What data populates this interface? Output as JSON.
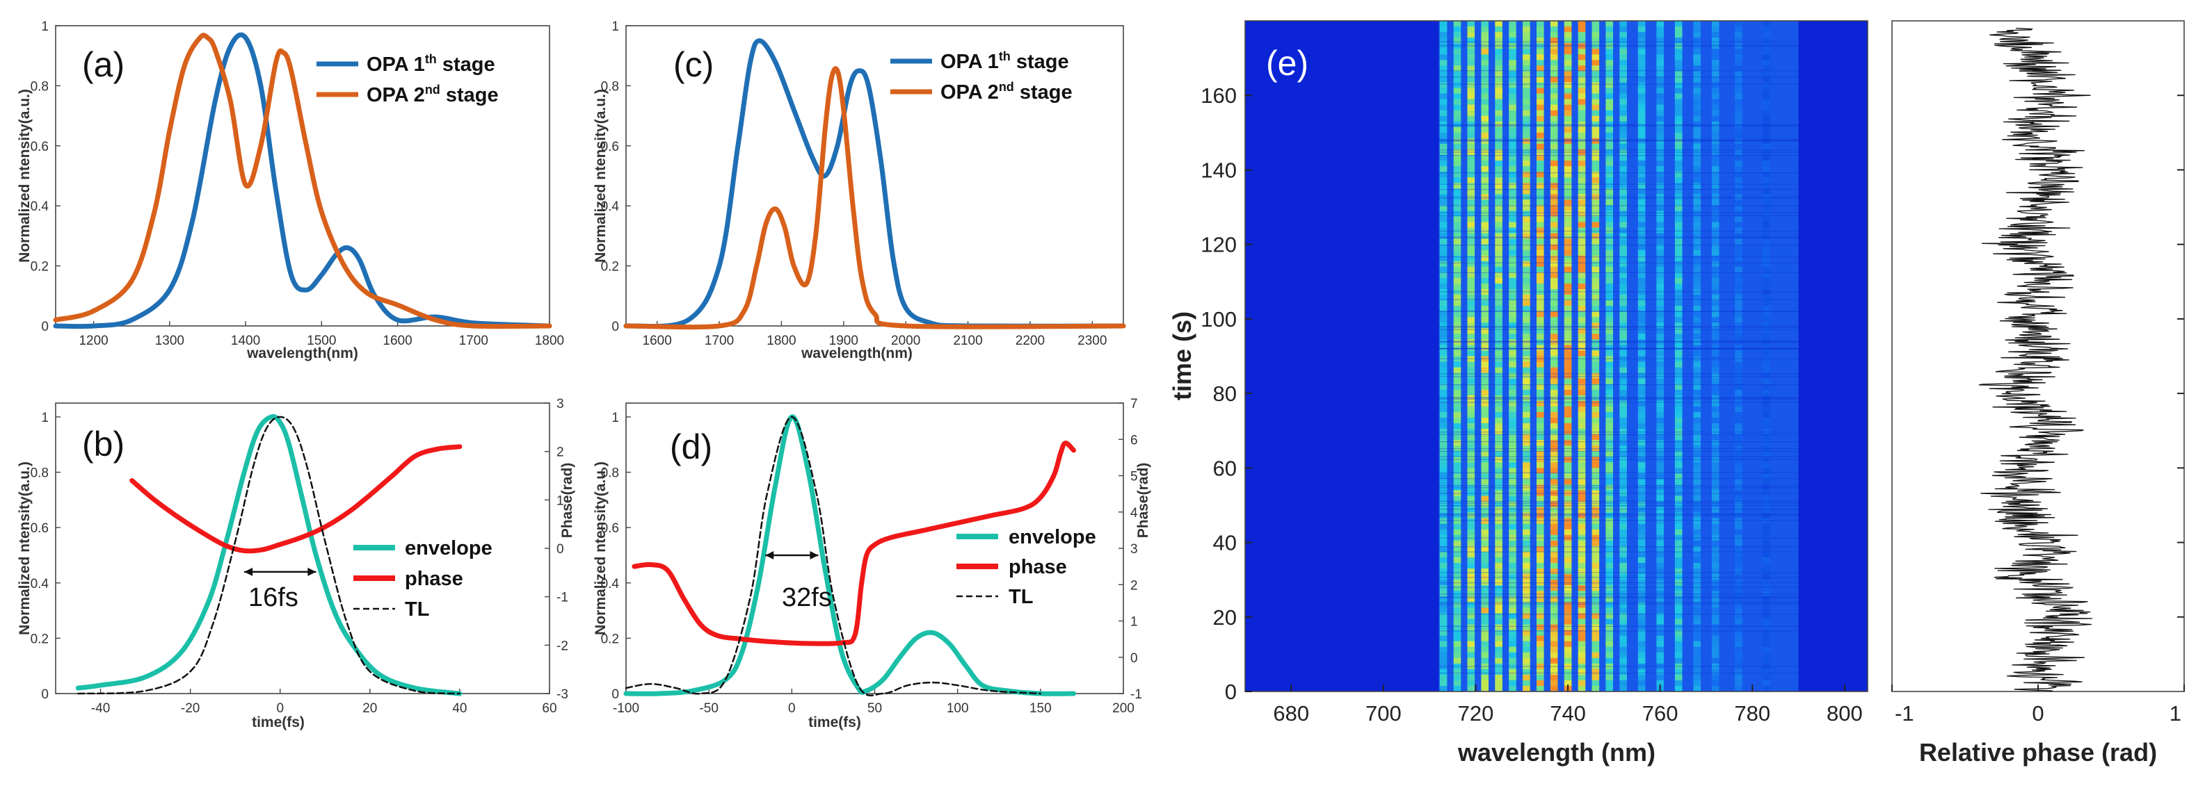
{
  "colors": {
    "blue": "#1f6fb5",
    "orange": "#d8601a",
    "teal": "#1bbfa8",
    "red": "#f01818",
    "tl": "#111111",
    "heat_bg": "#0a24d6"
  },
  "chart_data": [
    {
      "id": "a",
      "type": "line",
      "panel_label": "(a)",
      "title": "",
      "xlabel": "wavelength(nm)",
      "ylabel": "Normalized ntensity(a.u.)",
      "xlim": [
        1150,
        1800
      ],
      "ylim": [
        0,
        1
      ],
      "xticks": [
        1200,
        1300,
        1400,
        1500,
        1600,
        1700,
        1800
      ],
      "yticks": [
        0,
        0.2,
        0.4,
        0.6,
        0.8,
        1
      ],
      "ytick_labels": [
        "0",
        "0.2",
        "0.4",
        "0.6",
        "0.8",
        "1"
      ],
      "legend": [
        {
          "pre": "OPA 1",
          "sup": "th",
          "post": " stage",
          "color": "blue"
        },
        {
          "pre": "OPA 2",
          "sup": "nd",
          "post": " stage",
          "color": "orange"
        }
      ],
      "series": [
        {
          "name": "OPA 1th stage",
          "color": "blue",
          "x": [
            1150,
            1200,
            1250,
            1300,
            1330,
            1360,
            1380,
            1400,
            1420,
            1440,
            1460,
            1480,
            1500,
            1520,
            1535,
            1550,
            1570,
            1600,
            1650,
            1700,
            1800
          ],
          "y": [
            0.0,
            0.0,
            0.02,
            0.12,
            0.35,
            0.75,
            0.93,
            0.96,
            0.8,
            0.45,
            0.17,
            0.12,
            0.17,
            0.24,
            0.26,
            0.22,
            0.1,
            0.02,
            0.03,
            0.01,
            0.0
          ]
        },
        {
          "name": "OPA 2nd stage",
          "color": "orange",
          "x": [
            1150,
            1200,
            1250,
            1280,
            1300,
            1320,
            1340,
            1350,
            1360,
            1380,
            1400,
            1420,
            1440,
            1450,
            1460,
            1480,
            1500,
            1530,
            1560,
            1600,
            1650,
            1700,
            1800
          ],
          "y": [
            0.02,
            0.05,
            0.15,
            0.38,
            0.65,
            0.87,
            0.96,
            0.96,
            0.92,
            0.75,
            0.47,
            0.6,
            0.88,
            0.91,
            0.85,
            0.6,
            0.38,
            0.2,
            0.11,
            0.07,
            0.02,
            0.0,
            0.0
          ]
        }
      ]
    },
    {
      "id": "b",
      "type": "line",
      "panel_label": "(b)",
      "xlabel": "time(fs)",
      "ylabel": "Normalized ntensity(a.u.)",
      "y2label": "Phase(rad)",
      "xlim": [
        -50,
        60
      ],
      "ylim": [
        0,
        1.05
      ],
      "y2lim": [
        -3,
        3
      ],
      "xticks": [
        -40,
        -20,
        0,
        20,
        40,
        60
      ],
      "yticks": [
        0,
        0.2,
        0.4,
        0.6,
        0.8,
        1
      ],
      "ytick_labels": [
        "0",
        "0.2",
        "0.4",
        "0.6",
        "0.8",
        "1"
      ],
      "y2ticks": [
        -3,
        -2,
        -1,
        0,
        1,
        2,
        3
      ],
      "fwhm_label": "16fs",
      "fwhm_range": [
        -8,
        8
      ],
      "fwhm_level": 0.44,
      "legend": [
        {
          "label": "envelope",
          "color": "teal",
          "style": "solid"
        },
        {
          "label": "phase",
          "color": "red",
          "style": "solid"
        },
        {
          "label": "TL",
          "color": "tl",
          "style": "dashed"
        }
      ],
      "series": [
        {
          "name": "envelope",
          "color": "teal",
          "axis": "y",
          "x": [
            -45,
            -40,
            -30,
            -22,
            -16,
            -12,
            -8,
            -5,
            -2,
            0,
            2,
            5,
            8,
            12,
            16,
            22,
            30,
            40
          ],
          "y": [
            0.02,
            0.03,
            0.06,
            0.15,
            0.33,
            0.55,
            0.8,
            0.95,
            1.0,
            0.98,
            0.9,
            0.7,
            0.5,
            0.3,
            0.18,
            0.07,
            0.02,
            0.0
          ]
        },
        {
          "name": "phase",
          "color": "red",
          "axis": "y2",
          "x": [
            -33,
            -28,
            -22,
            -16,
            -12,
            -8,
            -4,
            0,
            4,
            8,
            12,
            16,
            20,
            25,
            30,
            35,
            40
          ],
          "y": [
            1.4,
            1.0,
            0.6,
            0.25,
            0.05,
            -0.05,
            -0.03,
            0.08,
            0.2,
            0.35,
            0.55,
            0.8,
            1.1,
            1.5,
            1.9,
            2.05,
            2.1
          ]
        },
        {
          "name": "TL",
          "color": "tl",
          "axis": "y",
          "dashed": true,
          "x": [
            -45,
            -30,
            -20,
            -15,
            -10,
            -6,
            -3,
            0,
            3,
            6,
            10,
            15,
            20,
            30,
            40
          ],
          "y": [
            0.0,
            0.01,
            0.08,
            0.25,
            0.55,
            0.82,
            0.96,
            1.0,
            0.96,
            0.82,
            0.55,
            0.25,
            0.08,
            0.01,
            0.0
          ]
        }
      ]
    },
    {
      "id": "c",
      "type": "line",
      "panel_label": "(c)",
      "xlabel": "wavelength(nm)",
      "ylabel": "Normalized ntensity(a.u.)",
      "xlim": [
        1550,
        2350
      ],
      "ylim": [
        0,
        1
      ],
      "xticks": [
        1600,
        1700,
        1800,
        1900,
        2000,
        2100,
        2200,
        2300
      ],
      "yticks": [
        0,
        0.2,
        0.4,
        0.6,
        0.8,
        1
      ],
      "ytick_labels": [
        "0",
        "0.2",
        "0.4",
        "0.6",
        "0.8",
        "1"
      ],
      "legend": [
        {
          "pre": "OPA 1",
          "sup": "th",
          "post": " stage",
          "color": "blue"
        },
        {
          "pre": "OPA 2",
          "sup": "nd",
          "post": " stage",
          "color": "orange"
        }
      ],
      "series": [
        {
          "name": "OPA 1th stage",
          "color": "blue",
          "x": [
            1550,
            1650,
            1700,
            1730,
            1750,
            1765,
            1790,
            1820,
            1850,
            1870,
            1890,
            1910,
            1925,
            1940,
            1960,
            1980,
            2000,
            2040,
            2100,
            2350
          ],
          "y": [
            0.0,
            0.02,
            0.2,
            0.6,
            0.88,
            0.95,
            0.88,
            0.72,
            0.56,
            0.5,
            0.6,
            0.8,
            0.85,
            0.8,
            0.55,
            0.22,
            0.06,
            0.01,
            0.0,
            0.0
          ]
        },
        {
          "name": "OPA 2nd stage",
          "color": "orange",
          "x": [
            1550,
            1700,
            1740,
            1760,
            1775,
            1790,
            1805,
            1820,
            1840,
            1855,
            1870,
            1880,
            1890,
            1900,
            1915,
            1930,
            1950,
            2000,
            2350
          ],
          "y": [
            0.0,
            0.0,
            0.05,
            0.2,
            0.34,
            0.39,
            0.33,
            0.2,
            0.14,
            0.3,
            0.65,
            0.82,
            0.85,
            0.72,
            0.4,
            0.15,
            0.04,
            0.0,
            0.0
          ]
        }
      ]
    },
    {
      "id": "d",
      "type": "line",
      "panel_label": "(d)",
      "xlabel": "time(fs)",
      "ylabel": "Normalized ntensity(a.u.)",
      "y2label": "Phase(rad)",
      "xlim": [
        -100,
        200
      ],
      "ylim": [
        0,
        1.05
      ],
      "y2lim": [
        -1,
        7
      ],
      "xticks": [
        -100,
        -50,
        0,
        50,
        100,
        150,
        200
      ],
      "yticks": [
        0,
        0.2,
        0.4,
        0.6,
        0.8,
        1
      ],
      "ytick_labels": [
        "0",
        "0.2",
        "0.4",
        "0.6",
        "0.8",
        "1"
      ],
      "y2ticks": [
        -1,
        0,
        1,
        2,
        3,
        4,
        5,
        6,
        7
      ],
      "fwhm_label": "32fs",
      "fwhm_range": [
        -16,
        16
      ],
      "fwhm_level": 0.5,
      "legend": [
        {
          "label": "envelope",
          "color": "teal",
          "style": "solid"
        },
        {
          "label": "phase",
          "color": "red",
          "style": "solid"
        },
        {
          "label": "TL",
          "color": "tl",
          "style": "dashed"
        }
      ],
      "series": [
        {
          "name": "envelope",
          "color": "teal",
          "axis": "y",
          "x": [
            -100,
            -80,
            -60,
            -40,
            -30,
            -20,
            -10,
            0,
            10,
            20,
            30,
            40,
            45,
            55,
            65,
            75,
            85,
            95,
            105,
            115,
            130,
            150,
            170
          ],
          "y": [
            0.0,
            0.0,
            0.01,
            0.05,
            0.15,
            0.4,
            0.75,
            1.0,
            0.8,
            0.45,
            0.15,
            0.02,
            0.01,
            0.05,
            0.13,
            0.2,
            0.22,
            0.18,
            0.1,
            0.03,
            0.01,
            0.0,
            0.0
          ]
        },
        {
          "name": "phase",
          "color": "red",
          "axis": "y2",
          "x": [
            -95,
            -85,
            -75,
            -65,
            -55,
            -45,
            -30,
            -10,
            10,
            30,
            38,
            42,
            45,
            50,
            60,
            80,
            100,
            120,
            140,
            150,
            158,
            162,
            165,
            170
          ],
          "y": [
            2.5,
            2.55,
            2.4,
            1.6,
            0.9,
            0.6,
            0.5,
            0.42,
            0.38,
            0.4,
            0.6,
            2.0,
            2.8,
            3.1,
            3.3,
            3.5,
            3.7,
            3.9,
            4.1,
            4.4,
            5.0,
            5.6,
            5.9,
            5.7
          ]
        },
        {
          "name": "TL",
          "color": "tl",
          "axis": "y",
          "dashed": true,
          "x": [
            -100,
            -85,
            -70,
            -55,
            -40,
            -25,
            -15,
            0,
            15,
            25,
            40,
            55,
            70,
            85,
            100,
            120,
            150
          ],
          "y": [
            0.02,
            0.035,
            0.02,
            0.0,
            0.05,
            0.35,
            0.72,
            1.0,
            0.72,
            0.35,
            0.03,
            0.0,
            0.03,
            0.04,
            0.03,
            0.01,
            0.0
          ]
        }
      ]
    },
    {
      "id": "e",
      "type": "heatmap",
      "panel_label": "(e)",
      "xlabel": "wavelength (nm)",
      "ylabel": "time (s)",
      "xlim": [
        670,
        805
      ],
      "ylim": [
        0,
        180
      ],
      "xticks": [
        680,
        700,
        720,
        740,
        760,
        780,
        800
      ],
      "yticks": [
        0,
        20,
        40,
        60,
        80,
        100,
        120,
        140,
        160
      ],
      "fringe_band_nm": [
        712,
        790
      ],
      "fringe_centers_nm": [
        713,
        716,
        719,
        722,
        725,
        728,
        731,
        734,
        737,
        740,
        743,
        746,
        749,
        752,
        756,
        760,
        764,
        768,
        772,
        777,
        783
      ],
      "fringe_intensity": [
        0.55,
        0.7,
        0.75,
        0.8,
        0.75,
        0.7,
        0.8,
        0.85,
        0.9,
        0.95,
        0.9,
        0.85,
        0.65,
        0.55,
        0.5,
        0.45,
        0.55,
        0.4,
        0.38,
        0.3,
        0.22
      ]
    },
    {
      "id": "e-phase",
      "type": "line",
      "xlabel": "Relative phase (rad)",
      "xlim": [
        -1,
        1
      ],
      "ylim": [
        0,
        180
      ],
      "xticks": [
        -1,
        0,
        1
      ],
      "series_description": "relative phase fluctuation vs time",
      "series": [
        {
          "name": "relative phase",
          "color": "tl",
          "anchor_t": [
            0,
            10,
            20,
            30,
            40,
            50,
            60,
            70,
            80,
            90,
            100,
            110,
            120,
            130,
            140,
            150,
            160,
            170,
            178
          ],
          "anchor_phase": [
            0.0,
            0.05,
            0.2,
            -0.05,
            0.05,
            -0.15,
            -0.1,
            0.1,
            -0.2,
            0.0,
            -0.05,
            0.1,
            -0.1,
            0.0,
            0.15,
            -0.05,
            0.1,
            0.0,
            -0.3
          ],
          "noise_amplitude": 0.22
        }
      ]
    }
  ]
}
